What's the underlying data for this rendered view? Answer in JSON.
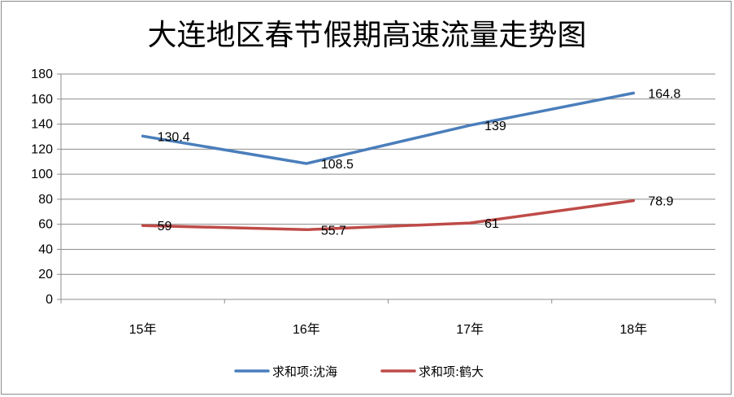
{
  "chart_data": {
    "type": "line",
    "title": "大连地区春节假期高速流量走势图",
    "categories": [
      "15年",
      "16年",
      "17年",
      "18年"
    ],
    "series": [
      {
        "name": "求和项:沈海",
        "values": [
          130.4,
          108.5,
          139,
          164.8
        ],
        "labels": [
          "130.4",
          "108.5",
          "139",
          "164.8"
        ],
        "color": "#4A7EBB"
      },
      {
        "name": "求和项:鹤大",
        "values": [
          59,
          55.7,
          61,
          78.9
        ],
        "labels": [
          "59",
          "55.7",
          "61",
          "78.9"
        ],
        "color": "#BE4B48"
      }
    ],
    "ylim": [
      0,
      180
    ],
    "yticks": [
      "0",
      "20",
      "40",
      "60",
      "80",
      "100",
      "120",
      "140",
      "160",
      "180"
    ],
    "grid": true,
    "legend": "bottom"
  }
}
